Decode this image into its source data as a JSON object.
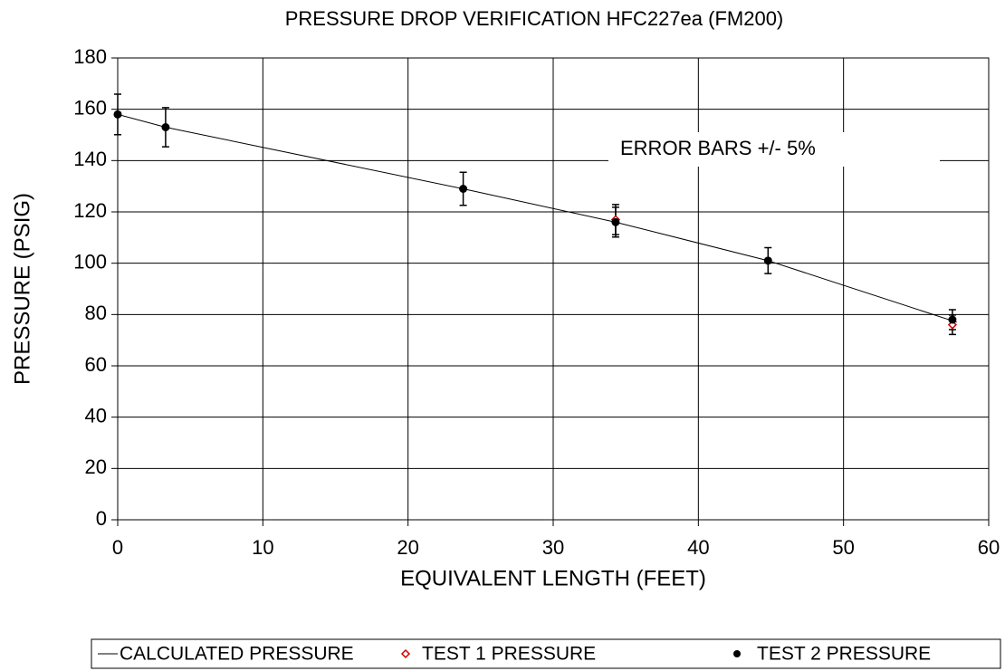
{
  "chart_data": {
    "type": "scatter",
    "title": "PRESSURE DROP VERIFICATION  HFC227ea (FM200)",
    "x_label": "EQUIVALENT LENGTH (FEET)",
    "y_label": "PRESSURE (PSIG)",
    "annotation": "ERROR BARS  +/- 5%",
    "xlim": [
      0,
      60
    ],
    "xticks": [
      0,
      10,
      20,
      30,
      40,
      50,
      60
    ],
    "ylim": [
      0,
      180
    ],
    "yticks": [
      0,
      20,
      40,
      60,
      80,
      100,
      120,
      140,
      160,
      180
    ],
    "grid": true,
    "legend": "bottom",
    "series": [
      {
        "name": "CALCULATED PRESSURE",
        "color": "#000000",
        "marker": "line",
        "x": [
          0,
          3.3,
          23.8,
          34.3,
          44.8,
          57.8
        ],
        "values": [
          158,
          153,
          129,
          116,
          101,
          77
        ]
      },
      {
        "name": "TEST 1 PRESSURE",
        "color": "#cc0000",
        "marker": "diamond",
        "x": [
          34.3,
          57.5
        ],
        "values": [
          117,
          76
        ],
        "errors": [
          5.85,
          3.8
        ]
      },
      {
        "name": "TEST 2 PRESSURE",
        "color": "#000000",
        "marker": "circle",
        "x": [
          0,
          3.3,
          23.8,
          34.3,
          44.8,
          57.5
        ],
        "values": [
          158,
          153,
          129,
          116,
          101,
          78
        ],
        "errors": [
          7.9,
          7.65,
          6.45,
          5.8,
          5.05,
          3.9
        ]
      }
    ]
  }
}
